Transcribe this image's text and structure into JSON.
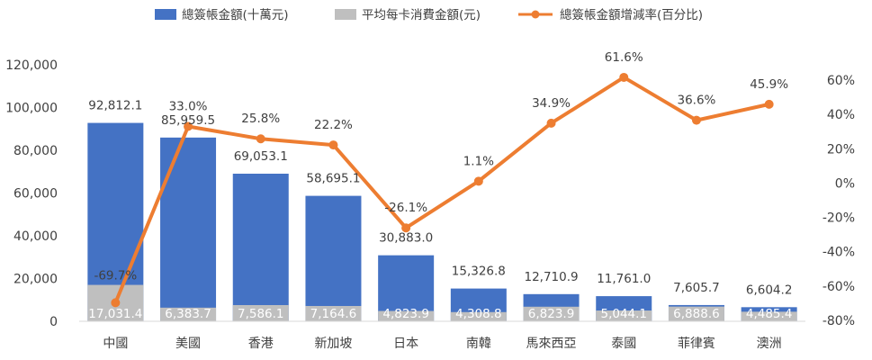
{
  "chart_data": {
    "type": "bar",
    "categories": [
      "中國",
      "美國",
      "香港",
      "新加坡",
      "日本",
      "南韓",
      "馬來西亞",
      "泰國",
      "菲律賓",
      "澳洲"
    ],
    "series": [
      {
        "name": "總簽帳金額(十萬元)",
        "type": "bar",
        "axis": "left",
        "color": "#4472C4",
        "values": [
          92812.1,
          85959.5,
          69053.1,
          58695.1,
          30883.0,
          15326.8,
          12710.9,
          11761.0,
          7605.7,
          6604.2
        ],
        "labels": [
          "92,812.1",
          "85,959.5",
          "69,053.1",
          "58,695.1",
          "30,883.0",
          "15,326.8",
          "12,710.9",
          "11,761.0",
          "7,605.7",
          "6,604.2"
        ]
      },
      {
        "name": "平均每卡消費金額(元)",
        "type": "bar",
        "axis": "left",
        "color": "#BFBFBF",
        "values": [
          17031.4,
          6383.7,
          7586.1,
          7164.6,
          4823.9,
          4308.8,
          6823.9,
          5044.1,
          6888.6,
          4485.4
        ],
        "labels": [
          "17,031.4",
          "6,383.7",
          "7,586.1",
          "7,164.6",
          "4,823.9",
          "4,308.8",
          "6,823.9",
          "5,044.1",
          "6,888.6",
          "4,485.4"
        ]
      },
      {
        "name": "總簽帳金額增減率(百分比)",
        "type": "line",
        "axis": "right",
        "color": "#ED7D31",
        "values": [
          -69.7,
          33.0,
          25.8,
          22.2,
          -26.1,
          1.1,
          34.9,
          61.6,
          36.6,
          45.9
        ],
        "labels": [
          "-69.7%",
          "33.0%",
          "25.8%",
          "22.2%",
          "-26.1%",
          "1.1%",
          "34.9%",
          "61.6%",
          "36.6%",
          "45.9%"
        ]
      }
    ],
    "y_left": {
      "min": 0,
      "max": 120000,
      "step": 20000,
      "ticks": [
        "0",
        "20,000",
        "40,000",
        "60,000",
        "80,000",
        "100,000",
        "120,000"
      ]
    },
    "y_right": {
      "min": -80,
      "max": 60,
      "step": 20,
      "ticks": [
        "-80%",
        "-60%",
        "-40%",
        "-20%",
        "0%",
        "20%",
        "40%",
        "60%"
      ]
    },
    "legend": "top",
    "grid": false
  }
}
